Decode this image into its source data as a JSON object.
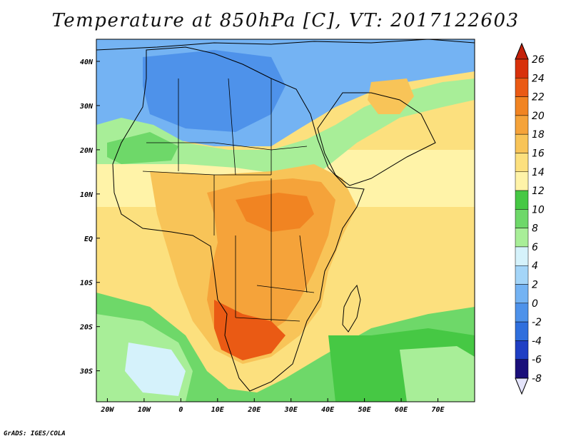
{
  "map": {
    "title": "Temperature at 850hPa [C], VT: 2017122603",
    "credit": "GrADS: IGES/COLA",
    "variable": "Temperature at 850hPa",
    "units": "C",
    "valid_time": "2017122603",
    "lon_range": [
      -23,
      80
    ],
    "lat_range": [
      -37,
      45
    ],
    "x_ticks": [
      "20W",
      "10W",
      "0",
      "10E",
      "20E",
      "30E",
      "40E",
      "50E",
      "60E",
      "70E"
    ],
    "y_ticks": [
      "40N",
      "30N",
      "20N",
      "10N",
      "EQ",
      "10S",
      "20S",
      "30S"
    ],
    "colorbar": {
      "labels": [
        "26",
        "24",
        "22",
        "20",
        "18",
        "16",
        "14",
        "12",
        "10",
        "8",
        "6",
        "4",
        "2",
        "0",
        "-2",
        "-4",
        "-6",
        "-8"
      ],
      "colors": [
        "#1a0f7a",
        "#1f3fc4",
        "#2f6fdd",
        "#4e92ea",
        "#74b3f3",
        "#a4d5f8",
        "#d5f2fb",
        "#a8ee98",
        "#6ed869",
        "#46c844",
        "#fff3a8",
        "#fce07e",
        "#f8c458",
        "#f5a33a",
        "#f18422",
        "#ea5a14",
        "#d8310b"
      ],
      "below_color": "#e4e4fb",
      "above_color": "#c4210a"
    }
  }
}
